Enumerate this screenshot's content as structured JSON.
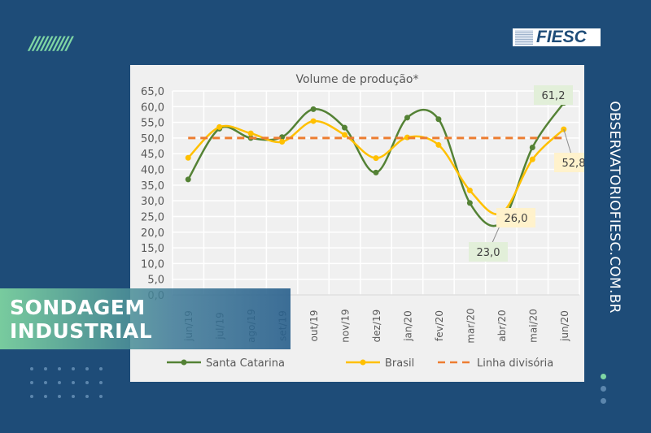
{
  "brand": {
    "logo_text": "FIESC",
    "website": "OBSERVATORIOFIESC.COM.BR",
    "banner": "SONDAGEM INDUSTRIAL"
  },
  "colors": {
    "background": "#1e4c78",
    "santa_catarina": "#548235",
    "brasil": "#ffc000",
    "linha": "#ed7d31",
    "accent": "#7fd6a4"
  },
  "chart_data": {
    "type": "line",
    "title": "Volume de produção*",
    "categories": [
      "jun/19",
      "jul/19",
      "ago/19",
      "set/19",
      "out/19",
      "nov/19",
      "dez/19",
      "jan/20",
      "fev/20",
      "mar/20",
      "abr/20",
      "mai/20",
      "jun/20"
    ],
    "ylim": [
      0,
      65
    ],
    "yticks": [
      "0,0",
      "5,0",
      "10,0",
      "15,0",
      "20,0",
      "25,0",
      "30,0",
      "35,0",
      "40,0",
      "45,0",
      "50,0",
      "55,0",
      "60,0",
      "65,0"
    ],
    "grid": true,
    "legend": "bottom",
    "smooth": true,
    "series": [
      {
        "name": "Santa Catarina",
        "values": [
          36.8,
          53.0,
          50.0,
          50.3,
          59.2,
          53.3,
          39.0,
          56.5,
          56.0,
          29.3,
          23.0,
          47.0,
          61.2
        ]
      },
      {
        "name": "Brasil",
        "values": [
          43.7,
          53.5,
          51.5,
          48.8,
          55.4,
          51.0,
          43.6,
          50.2,
          47.8,
          33.3,
          26.0,
          43.2,
          52.8
        ]
      },
      {
        "name": "Linha divisória",
        "values": [
          50,
          50,
          50,
          50,
          50,
          50,
          50,
          50,
          50,
          50,
          50,
          50,
          50
        ],
        "dashed": true
      }
    ],
    "annotations": [
      {
        "series": "Santa Catarina",
        "category": "jun/20",
        "label": "61,2"
      },
      {
        "series": "Santa Catarina",
        "category": "abr/20",
        "label": "23,0"
      },
      {
        "series": "Brasil",
        "category": "abr/20",
        "label": "26,0"
      },
      {
        "series": "Brasil",
        "category": "jun/20",
        "label": "52,8"
      }
    ]
  }
}
